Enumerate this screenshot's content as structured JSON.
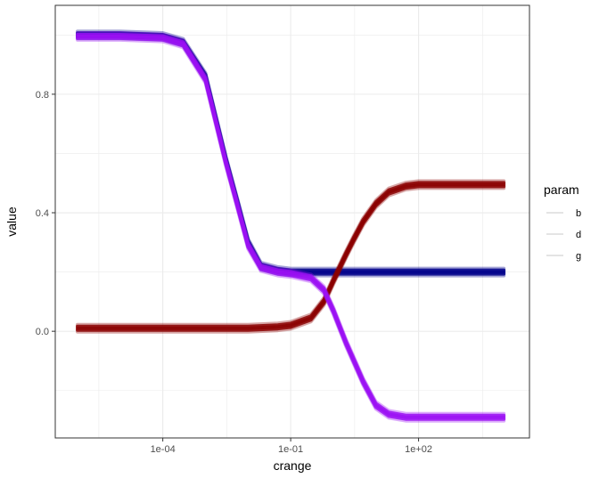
{
  "chart_data": {
    "type": "line",
    "xlabel": "crange",
    "ylabel": "value",
    "x_scale": "log10",
    "xlim": [
      3e-07,
      40000
    ],
    "ylim": [
      -0.36,
      1.1
    ],
    "x_ticks": [
      {
        "value": 0.0001,
        "label": "1e-04"
      },
      {
        "value": 0.1,
        "label": "1e-01"
      },
      {
        "value": 100,
        "label": "1e+02"
      }
    ],
    "y_ticks": [
      {
        "value": 0.0,
        "label": "0.0"
      },
      {
        "value": 0.4,
        "label": "0.4"
      },
      {
        "value": 0.8,
        "label": "0.8"
      }
    ],
    "grid": true,
    "legend": {
      "title": "param",
      "position": "right",
      "entries": [
        "b",
        "d",
        "g"
      ]
    },
    "series": [
      {
        "name": "b",
        "color": "#00008b",
        "x": [
          1e-06,
          1e-05,
          0.0001,
          0.0003,
          0.001,
          0.003,
          0.006,
          0.01,
          0.02,
          0.05,
          0.1,
          1,
          10,
          100,
          1000,
          10000
        ],
        "y": [
          1.0,
          1.0,
          0.995,
          0.975,
          0.86,
          0.58,
          0.42,
          0.3,
          0.22,
          0.205,
          0.2,
          0.2,
          0.2,
          0.2,
          0.2,
          0.2
        ]
      },
      {
        "name": "d",
        "color": "#8b0000",
        "x": [
          1e-06,
          0.0001,
          0.01,
          0.05,
          0.1,
          0.3,
          0.6,
          1,
          2,
          3,
          5,
          10,
          20,
          50,
          100,
          1000,
          10000
        ],
        "y": [
          0.01,
          0.01,
          0.01,
          0.015,
          0.02,
          0.045,
          0.1,
          0.17,
          0.26,
          0.31,
          0.37,
          0.43,
          0.47,
          0.49,
          0.495,
          0.495,
          0.495
        ]
      },
      {
        "name": "g",
        "color": "#9b10f3",
        "x": [
          1e-06,
          1e-05,
          0.0001,
          0.0003,
          0.001,
          0.003,
          0.006,
          0.01,
          0.02,
          0.05,
          0.1,
          0.3,
          0.6,
          1,
          2,
          5,
          10,
          20,
          50,
          100,
          1000,
          10000
        ],
        "y": [
          0.995,
          0.995,
          0.99,
          0.97,
          0.85,
          0.57,
          0.41,
          0.29,
          0.215,
          0.2,
          0.195,
          0.18,
          0.14,
          0.07,
          -0.04,
          -0.17,
          -0.25,
          -0.28,
          -0.29,
          -0.29,
          -0.29,
          -0.29
        ]
      }
    ]
  }
}
